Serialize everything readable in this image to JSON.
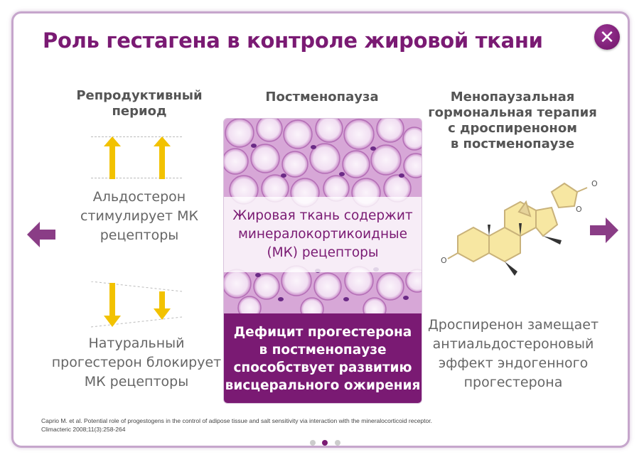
{
  "header": {
    "title": "Роль гестагена в контроле жировой ткани",
    "close_icon": "close-icon"
  },
  "columns": {
    "left": {
      "heading": "Репродуктивный\nпериод",
      "top_text": "Альдостерон\nстимулирует МК\nрецепторы",
      "bottom_text": "Натуральный\nпрогестерон блокирует\nМК рецепторы"
    },
    "center": {
      "heading": "Постменопауза",
      "overlay_text": "Жировая ткань содержит\nминералокортикоидные\n(МК) рецепторы",
      "footer_text": "Дефицит прогестерона\nв постменопаузе\nспособствует развитию\nвисцерального ожирения"
    },
    "right": {
      "heading": "Менопаузальная\nгормональная терапия\nс дроспиреноном\nв постменопаузе",
      "bottom_text": "Дроспиренон замещает\nантиальдостероновый\nэффект эндогенного\nпрогестерона"
    }
  },
  "nav": {
    "prev_icon": "arrow-left-icon",
    "next_icon": "arrow-right-icon"
  },
  "citation": {
    "line1": "Caprio M. et al. Potential role of progestogens in the control of adipose tissue and salt sensitivity via interaction with the mineralocorticoid receptor.",
    "line2": "Climacteric 2008;11(3):258-264"
  },
  "pagination": {
    "total": 3,
    "active_index": 1
  },
  "colors": {
    "brand": "#7a1a73",
    "arrow_yellow": "#f2c200",
    "nav_arrow": "#8a3d86"
  }
}
